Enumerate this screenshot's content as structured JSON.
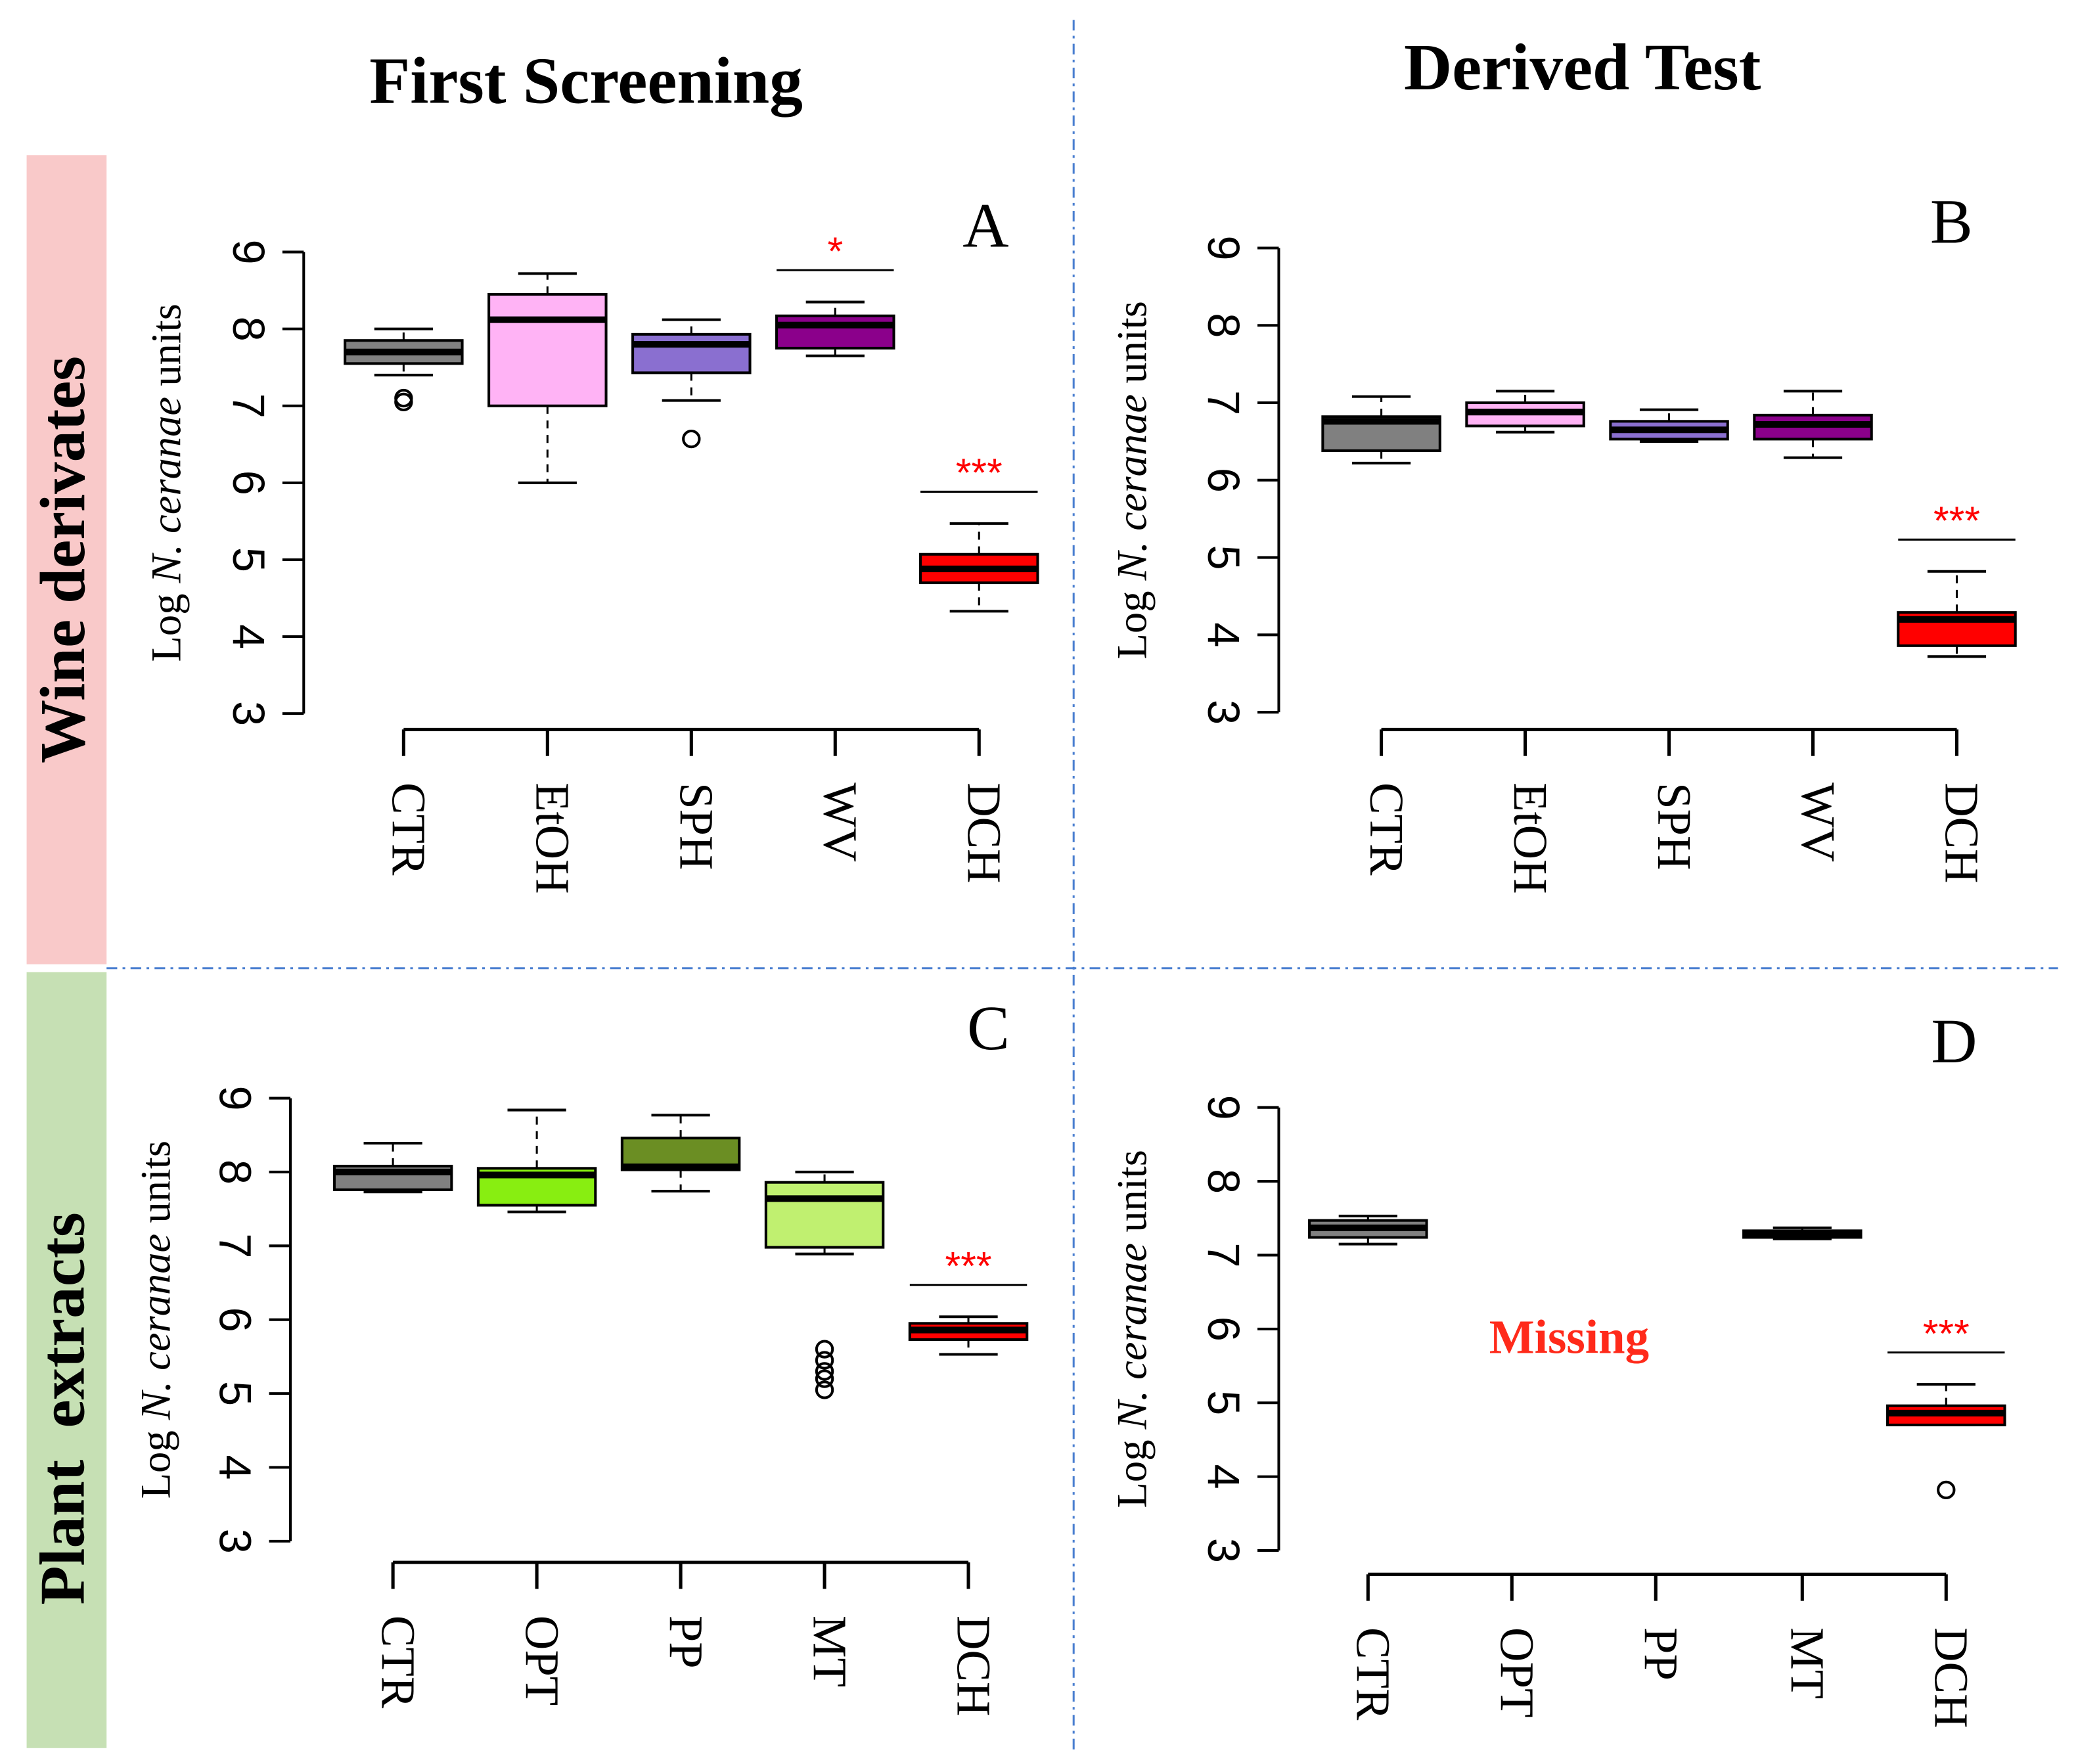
{
  "column_titles": [
    "First Screening",
    "Derived Test"
  ],
  "row_labels": [
    "Wine derivates",
    "Plant  extracts"
  ],
  "chart_data": [
    {
      "type": "box",
      "panel": "A",
      "ylabel": [
        "Log ",
        "N. ceranae",
        " units"
      ],
      "categories": [
        "CTR",
        "EtOH",
        "SPH",
        "WV",
        "DCH"
      ],
      "colors": [
        "#808080",
        "#ffb3f5",
        "#8a6fd0",
        "#8b008b",
        "#ff0000"
      ],
      "ylim": [
        3,
        9
      ],
      "yticks": [
        3,
        4,
        5,
        6,
        7,
        8,
        9
      ],
      "boxes": [
        {
          "min": 7.4,
          "q1": 7.55,
          "median": 7.7,
          "q3": 7.85,
          "max": 8.0,
          "outliers": [
            7.1,
            7.05
          ]
        },
        {
          "min": 6.0,
          "q1": 7.0,
          "median": 8.12,
          "q3": 8.45,
          "max": 8.72
        },
        {
          "min": 7.07,
          "q1": 7.43,
          "median": 7.8,
          "q3": 7.93,
          "max": 8.12,
          "outliers": [
            6.57
          ]
        },
        {
          "min": 7.65,
          "q1": 7.75,
          "median": 8.05,
          "q3": 8.17,
          "max": 8.35
        },
        {
          "min": 4.33,
          "q1": 4.7,
          "median": 4.88,
          "q3": 5.07,
          "max": 5.47
        }
      ],
      "significance": [
        null,
        null,
        null,
        "*",
        "***"
      ],
      "significance_color": "#ff0000"
    },
    {
      "type": "box",
      "panel": "B",
      "ylabel": [
        "Log ",
        "N. ceranae",
        " units"
      ],
      "categories": [
        "CTR",
        "EtOH",
        "SPH",
        "WV",
        "DCH"
      ],
      "colors": [
        "#808080",
        "#ffb3f5",
        "#8a6fd0",
        "#8b008b",
        "#ff0000"
      ],
      "ylim": [
        3,
        9
      ],
      "yticks": [
        3,
        4,
        5,
        6,
        7,
        8,
        9
      ],
      "boxes": [
        {
          "min": 6.22,
          "q1": 6.38,
          "median": 6.76,
          "q3": 6.82,
          "max": 7.08
        },
        {
          "min": 6.62,
          "q1": 6.7,
          "median": 6.88,
          "q3": 7.0,
          "max": 7.15
        },
        {
          "min": 6.5,
          "q1": 6.53,
          "median": 6.65,
          "q3": 6.76,
          "max": 6.91
        },
        {
          "min": 6.29,
          "q1": 6.53,
          "median": 6.72,
          "q3": 6.84,
          "max": 7.15
        },
        {
          "min": 3.72,
          "q1": 3.86,
          "median": 4.2,
          "q3": 4.29,
          "max": 4.82
        }
      ],
      "significance": [
        null,
        null,
        null,
        null,
        "***"
      ],
      "significance_color": "#ff0000"
    },
    {
      "type": "box",
      "panel": "C",
      "ylabel": [
        "Log ",
        "N. ceranae",
        " units"
      ],
      "categories": [
        "CTR",
        "OPT",
        "PP",
        "MT",
        "DCH"
      ],
      "colors": [
        "#808080",
        "#88ee11",
        "#6b8e23",
        "#c0f070",
        "#ff0000"
      ],
      "ylim": [
        3,
        9
      ],
      "yticks": [
        3,
        4,
        5,
        6,
        7,
        8,
        9
      ],
      "boxes": [
        {
          "min": 7.73,
          "q1": 7.76,
          "median": 8.0,
          "q3": 8.08,
          "max": 8.39
        },
        {
          "min": 7.46,
          "q1": 7.55,
          "median": 7.96,
          "q3": 8.05,
          "max": 8.84
        },
        {
          "min": 7.74,
          "q1": 8.03,
          "median": 8.07,
          "q3": 8.46,
          "max": 8.77
        },
        {
          "min": 6.89,
          "q1": 6.98,
          "median": 7.64,
          "q3": 7.86,
          "max": 8.0,
          "outliers": [
            5.6,
            5.45,
            5.3,
            5.2,
            5.05
          ]
        },
        {
          "min": 5.53,
          "q1": 5.73,
          "median": 5.86,
          "q3": 5.95,
          "max": 6.04
        }
      ],
      "significance": [
        null,
        null,
        null,
        null,
        "***"
      ],
      "significance_color": "#ff0000"
    },
    {
      "type": "box",
      "panel": "D",
      "ylabel": [
        "Log ",
        "N. ceranae",
        " units"
      ],
      "categories": [
        "CTR",
        "OPT",
        "PP",
        "MT",
        "DCH"
      ],
      "colors": [
        "#808080",
        null,
        null,
        "#c0f070",
        "#ff0000"
      ],
      "ylim": [
        3,
        9
      ],
      "yticks": [
        3,
        4,
        5,
        6,
        7,
        8,
        9
      ],
      "boxes": [
        {
          "min": 7.15,
          "q1": 7.24,
          "median": 7.37,
          "q3": 7.47,
          "max": 7.53
        },
        null,
        null,
        {
          "min": 7.22,
          "q1": 7.24,
          "median": 7.3,
          "q3": 7.33,
          "max": 7.37
        },
        {
          "min": 4.7,
          "q1": 4.7,
          "median": 4.86,
          "q3": 4.96,
          "max": 5.25,
          "outliers": [
            3.82
          ]
        }
      ],
      "significance": [
        null,
        null,
        null,
        null,
        "***"
      ],
      "significance_color": "#ff0000",
      "annotation": "Missing",
      "annotation_color": "#ff2a1a"
    }
  ]
}
